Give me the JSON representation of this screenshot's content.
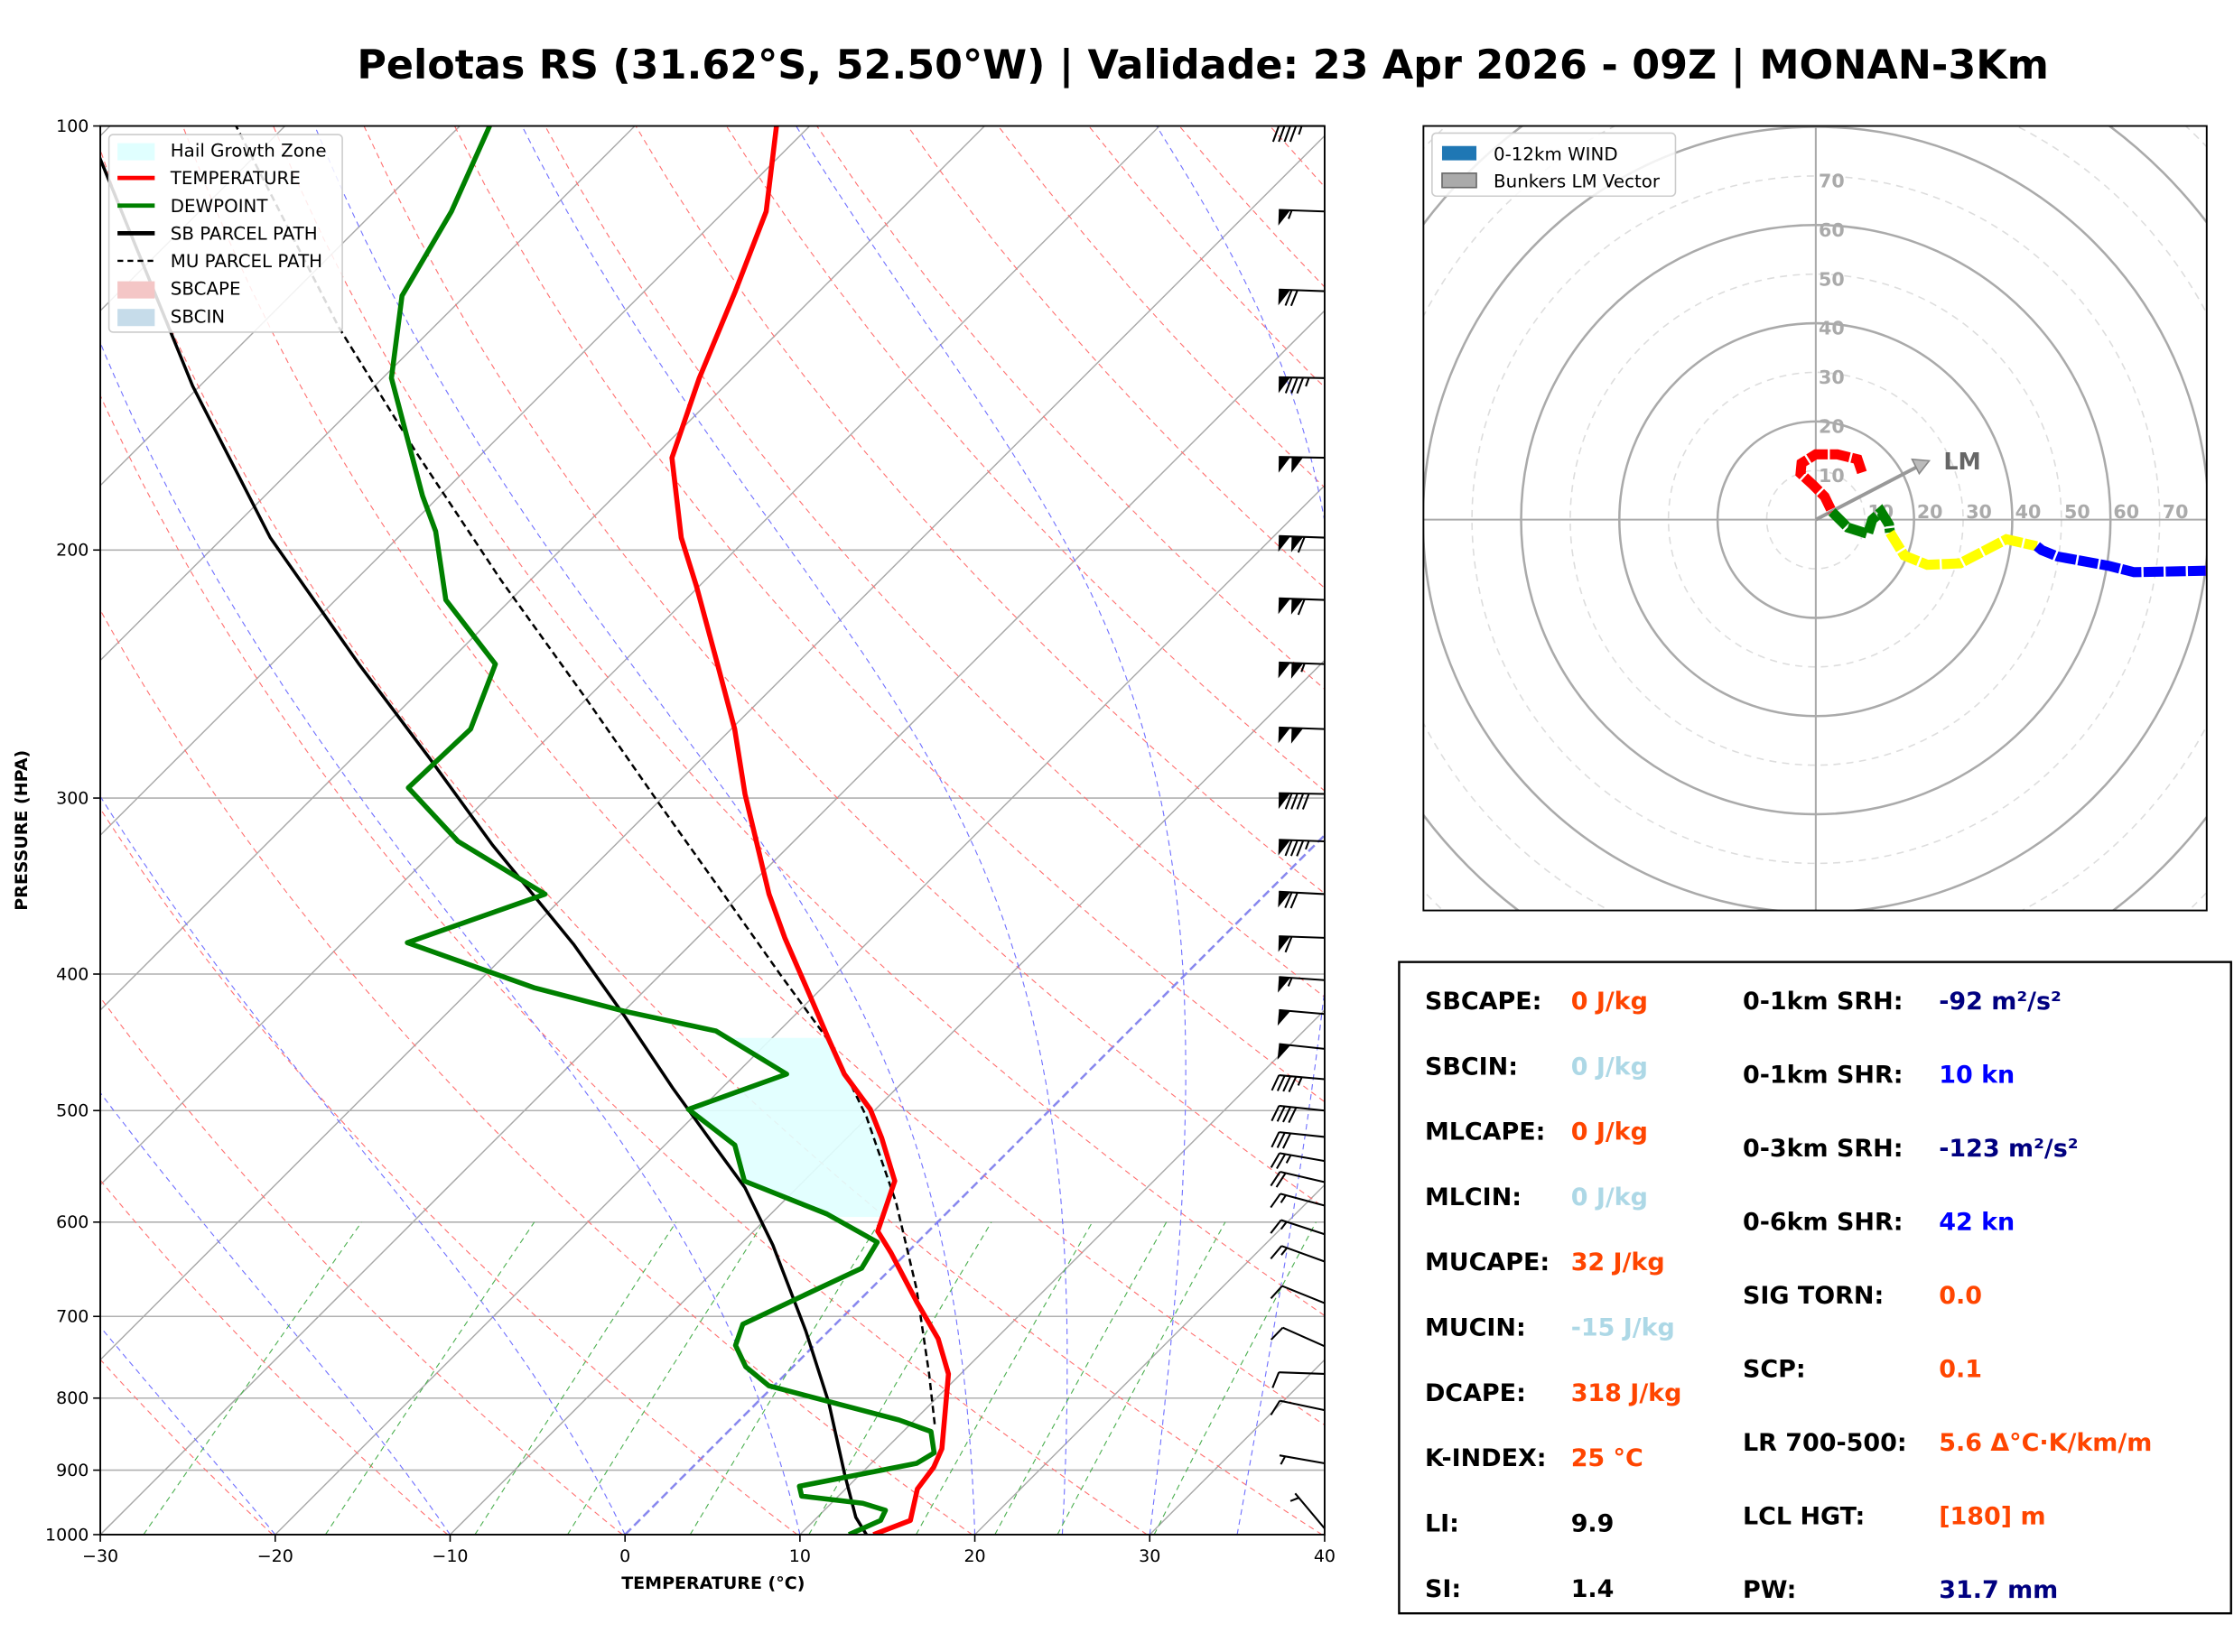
{
  "title": "Pelotas RS (31.62°S, 52.50°W) | Validade: 23 Apr 2026 - 09Z | MONAN-3Km",
  "chart_data": [
    {
      "type": "line",
      "name": "skew-t",
      "xlabel": "TEMPERATURE (°C)",
      "ylabel": "PRESSURE (HPA)",
      "xlim": [
        -30,
        40
      ],
      "ylim": [
        1000,
        100
      ],
      "xticks": [
        -30,
        -20,
        -10,
        0,
        10,
        20,
        30,
        40
      ],
      "xtick_labels": [
        "−30",
        "−20",
        "−10",
        "0",
        "10",
        "20",
        "30",
        "40"
      ],
      "yticks": [
        100,
        200,
        300,
        400,
        500,
        600,
        700,
        800,
        900,
        1000
      ],
      "ytick_labels": [
        "100",
        "200",
        "300",
        "400",
        "500",
        "600",
        "700",
        "800",
        "900",
        "1000"
      ],
      "legend": {
        "placement": "top-left",
        "entries": [
          {
            "label": "Hail Growth Zone",
            "color": "#e0ffff",
            "kind": "patch"
          },
          {
            "label": "TEMPERATURE",
            "color": "#ff0000",
            "kind": "line"
          },
          {
            "label": "DEWPOINT",
            "color": "#008000",
            "kind": "line"
          },
          {
            "label": "SB PARCEL PATH",
            "color": "#000000",
            "kind": "line"
          },
          {
            "label": "MU PARCEL PATH",
            "color": "#000000",
            "kind": "dashed"
          },
          {
            "label": "SBCAPE",
            "color": "#f4c6c6",
            "kind": "patch"
          },
          {
            "label": "SBCIN",
            "color": "#c6dcea",
            "kind": "patch"
          }
        ]
      },
      "temperature": [
        [
          1000,
          14.2
        ],
        [
          977,
          15.5
        ],
        [
          928,
          14.1
        ],
        [
          896,
          13.8
        ],
        [
          869,
          13.2
        ],
        [
          816,
          11.2
        ],
        [
          769,
          9.3
        ],
        [
          726,
          6.7
        ],
        [
          684,
          3.4
        ],
        [
          631,
          -0.9
        ],
        [
          609,
          -2.9
        ],
        [
          561,
          -4.8
        ],
        [
          523,
          -8.0
        ],
        [
          499,
          -10.3
        ],
        [
          471,
          -13.8
        ],
        [
          444,
          -16.8
        ],
        [
          414,
          -20.3
        ],
        [
          377,
          -25.0
        ],
        [
          351,
          -28.4
        ],
        [
          298,
          -35.5
        ],
        [
          268,
          -39.8
        ],
        [
          241,
          -44.5
        ],
        [
          212,
          -50.2
        ],
        [
          196,
          -53.8
        ],
        [
          172,
          -58.9
        ],
        [
          151,
          -61.9
        ],
        [
          131,
          -64.8
        ],
        [
          115,
          -67.6
        ],
        [
          100,
          -71.9
        ]
      ],
      "dewpoint": [
        [
          1000,
          12.8
        ],
        [
          977,
          13.8
        ],
        [
          961,
          13.5
        ],
        [
          950,
          11.8
        ],
        [
          939,
          7.9
        ],
        [
          924,
          7.2
        ],
        [
          890,
          12.6
        ],
        [
          875,
          13.0
        ],
        [
          845,
          11.6
        ],
        [
          829,
          9.1
        ],
        [
          784,
          -0.3
        ],
        [
          760,
          -2.7
        ],
        [
          734,
          -4.5
        ],
        [
          709,
          -5.3
        ],
        [
          677,
          -3.5
        ],
        [
          647,
          -1.7
        ],
        [
          620,
          -2.3
        ],
        [
          592,
          -6.8
        ],
        [
          561,
          -13.4
        ],
        [
          529,
          -16.0
        ],
        [
          499,
          -20.7
        ],
        [
          471,
          -17.1
        ],
        [
          439,
          -23.6
        ],
        [
          425,
          -30.0
        ],
        [
          409,
          -36.5
        ],
        [
          380,
          -46.3
        ],
        [
          351,
          -41.2
        ],
        [
          322,
          -49.2
        ],
        [
          295,
          -55.1
        ],
        [
          268,
          -54.9
        ],
        [
          241,
          -57.2
        ],
        [
          217,
          -63.7
        ],
        [
          194,
          -68.2
        ],
        [
          183,
          -71.0
        ],
        [
          151,
          -79.5
        ],
        [
          132,
          -83.6
        ],
        [
          115,
          -85.6
        ],
        [
          100,
          -88.3
        ]
      ],
      "sb_parcel": [
        [
          1000,
          13.8
        ],
        [
          972,
          12.2
        ],
        [
          906,
          9.1
        ],
        [
          806,
          4.1
        ],
        [
          717,
          -1.3
        ],
        [
          623,
          -8.1
        ],
        [
          567,
          -13.0
        ],
        [
          529,
          -17.2
        ],
        [
          482,
          -22.8
        ],
        [
          429,
          -29.6
        ],
        [
          381,
          -36.7
        ],
        [
          324,
          -47.0
        ],
        [
          281,
          -55.6
        ],
        [
          241,
          -65.0
        ],
        [
          196,
          -77.3
        ],
        [
          153,
          -90.4
        ],
        [
          104,
          -109.4
        ]
      ],
      "mu_parcel": [
        [
          835,
          11.4
        ],
        [
          769,
          8.2
        ],
        [
          669,
          2.6
        ],
        [
          581,
          -3.5
        ],
        [
          505,
          -10.1
        ],
        [
          449,
          -16.2
        ],
        [
          400,
          -23.2
        ],
        [
          351,
          -31.0
        ],
        [
          302,
          -40.0
        ],
        [
          256,
          -49.8
        ],
        [
          210,
          -61.7
        ],
        [
          170,
          -74.0
        ],
        [
          139,
          -85.4
        ],
        [
          100,
          -102.8
        ]
      ],
      "hail_growth_zone_hpa": [
        595,
        444
      ],
      "wind_barbs_kt": [
        [
          100,
          45,
          270
        ],
        [
          115,
          55,
          272
        ],
        [
          131,
          70,
          272
        ],
        [
          151,
          85,
          271
        ],
        [
          172,
          100,
          271
        ],
        [
          196,
          110,
          272
        ],
        [
          217,
          110,
          272
        ],
        [
          241,
          105,
          272
        ],
        [
          268,
          100,
          272
        ],
        [
          298,
          90,
          271
        ],
        [
          322,
          85,
          272
        ],
        [
          351,
          70,
          273
        ],
        [
          377,
          60,
          272
        ],
        [
          404,
          55,
          274
        ],
        [
          427,
          50,
          275
        ],
        [
          452,
          50,
          276
        ],
        [
          475,
          45,
          275
        ],
        [
          500,
          40,
          276
        ],
        [
          522,
          30,
          276
        ],
        [
          543,
          25,
          280
        ],
        [
          562,
          20,
          283
        ],
        [
          584,
          15,
          285
        ],
        [
          612,
          15,
          288
        ],
        [
          640,
          15,
          290
        ],
        [
          685,
          10,
          292
        ],
        [
          735,
          10,
          294
        ],
        [
          769,
          10,
          272
        ],
        [
          816,
          10,
          282
        ],
        [
          890,
          5,
          280
        ],
        [
          990,
          5,
          320
        ]
      ]
    },
    {
      "type": "line",
      "name": "hodograph",
      "xlim": [
        -80,
        80
      ],
      "ylim": [
        -80,
        80
      ],
      "ring_labels": [
        "10",
        "20",
        "30",
        "40",
        "50",
        "60",
        "70"
      ],
      "legend": {
        "placement": "top-left",
        "entries": [
          {
            "label": "0-12km WIND",
            "color": "#1f77b4"
          },
          {
            "label": "Bunkers LM Vector",
            "color": "#aaaaaa"
          }
        ]
      },
      "segments": [
        {
          "color": "#ff0000",
          "uv": [
            [
              9.4,
              9.6
            ],
            [
              8.5,
              12.3
            ],
            [
              4.4,
              13.3
            ],
            [
              0,
              13.3
            ],
            [
              -2.9,
              11.5
            ],
            [
              -3.1,
              9.4
            ],
            [
              -0.6,
              7.1
            ],
            [
              1.8,
              4.7
            ],
            [
              3.3,
              1.6
            ]
          ]
        },
        {
          "color": "#008000",
          "uv": [
            [
              3.3,
              1.6
            ],
            [
              6.5,
              -1.6
            ],
            [
              10.6,
              -2.9
            ],
            [
              11.5,
              0
            ],
            [
              13.3,
              1.6
            ],
            [
              14.9,
              -1.0
            ],
            [
              15.1,
              -2.6
            ]
          ]
        },
        {
          "color": "#ffff00",
          "uv": [
            [
              15.1,
              -2.6
            ],
            [
              18.0,
              -7.3
            ],
            [
              22.7,
              -9.2
            ],
            [
              29.4,
              -8.9
            ],
            [
              38.8,
              -4.0
            ],
            [
              45.0,
              -5.4
            ]
          ]
        },
        {
          "color": "#0000ff",
          "uv": [
            [
              45.0,
              -5.4
            ],
            [
              46.0,
              -6.2
            ],
            [
              49.2,
              -7.5
            ],
            [
              59.6,
              -9.4
            ],
            [
              64.8,
              -10.7
            ],
            [
              79.4,
              -10.4
            ]
          ]
        },
        {
          "color": "#ff00ff",
          "uv": [
            [
              79.4,
              -10.4
            ],
            [
              80,
              -10.4
            ]
          ]
        }
      ],
      "bunkers_lm": {
        "label": "LM",
        "u": 23.1,
        "v": 12.0
      }
    }
  ],
  "stats": {
    "left": [
      {
        "label": "SBCAPE:",
        "value": "0 J/kg",
        "color": "#ff4500"
      },
      {
        "label": "SBCIN:",
        "value": "0 J/kg",
        "color": "#add8e6"
      },
      {
        "label": "MLCAPE:",
        "value": "0 J/kg",
        "color": "#ff4500"
      },
      {
        "label": "MLCIN:",
        "value": "0 J/kg",
        "color": "#add8e6"
      },
      {
        "label": "MUCAPE:",
        "value": "32 J/kg",
        "color": "#ff4500"
      },
      {
        "label": "MUCIN:",
        "value": "-15 J/kg",
        "color": "#add8e6"
      },
      {
        "label": "DCAPE:",
        "value": "318 J/kg",
        "color": "#ff4500"
      },
      {
        "label": "K-INDEX:",
        "value": "25 °C",
        "color": "#ff4500"
      },
      {
        "label": "LI:",
        "value": "9.9",
        "color": "#000000"
      },
      {
        "label": "SI:",
        "value": "1.4",
        "color": "#000000"
      }
    ],
    "right": [
      {
        "label": "0-1km SRH:",
        "value": "-92 m²/s²",
        "color": "#000080"
      },
      {
        "label": "0-1km SHR:",
        "value": "10 kn",
        "color": "#0000ff"
      },
      {
        "label": "0-3km SRH:",
        "value": "-123 m²/s²",
        "color": "#000080"
      },
      {
        "label": "0-6km SHR:",
        "value": "42 kn",
        "color": "#0000ff"
      },
      {
        "label": "SIG TORN:",
        "value": "0.0",
        "color": "#ff4500"
      },
      {
        "label": "SCP:",
        "value": "0.1",
        "color": "#ff4500"
      },
      {
        "label": "LR 700-500:",
        "value": "5.6 Δ°C·K/km/m",
        "color": "#ff4500"
      },
      {
        "label": "LCL HGT:",
        "value": "[180] m",
        "color": "#ff4500"
      },
      {
        "label": "PW:",
        "value": "31.7 mm",
        "color": "#000080"
      }
    ]
  }
}
